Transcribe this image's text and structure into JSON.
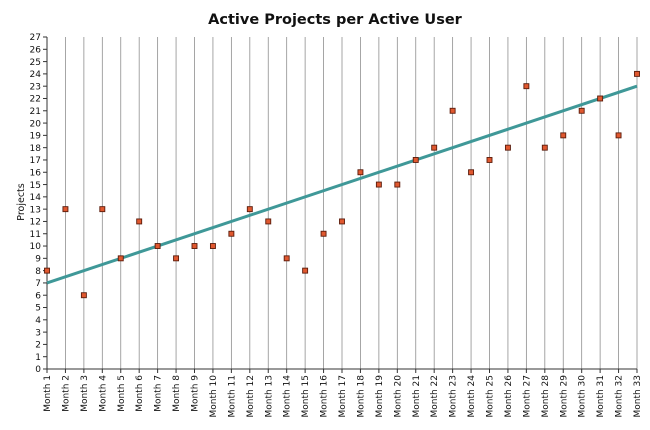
{
  "chart_data": {
    "type": "scatter",
    "title": "Active Projects per Active User",
    "xlabel": "",
    "ylabel": "Projects",
    "categories": [
      "Month 1",
      "Month 2",
      "Month 3",
      "Month 4",
      "Month 5",
      "Month 6",
      "Month 7",
      "Month 8",
      "Month 9",
      "Month 10",
      "Month 11",
      "Month 12",
      "Month 13",
      "Month 14",
      "Month 15",
      "Month 16",
      "Month 17",
      "Month 18",
      "Month 19",
      "Month 20",
      "Month 21",
      "Month 22",
      "Month 23",
      "Month 24",
      "Month 25",
      "Month 26",
      "Month 27",
      "Month 28",
      "Month 29",
      "Month 30",
      "Month 31",
      "Month 32",
      "Month 33"
    ],
    "series": [
      {
        "values": [
          8,
          13,
          6,
          13,
          9,
          12,
          10,
          9,
          10,
          10,
          11,
          13,
          12,
          9,
          8,
          11,
          12,
          16,
          15,
          15,
          17,
          18,
          21,
          16,
          17,
          18,
          23,
          18,
          19,
          21,
          22,
          19,
          24
        ]
      }
    ],
    "trendline": {
      "start": 7,
      "end": 23,
      "color": "#3f9898"
    },
    "marker_color": "#e0582f",
    "ylim": [
      0,
      27
    ],
    "yticks": [
      0,
      1,
      2,
      3,
      4,
      5,
      6,
      7,
      8,
      9,
      10,
      11,
      12,
      13,
      14,
      15,
      16,
      17,
      18,
      19,
      20,
      21,
      22,
      23,
      24,
      25,
      26,
      27
    ],
    "grid": "vertical",
    "legend": "none"
  }
}
